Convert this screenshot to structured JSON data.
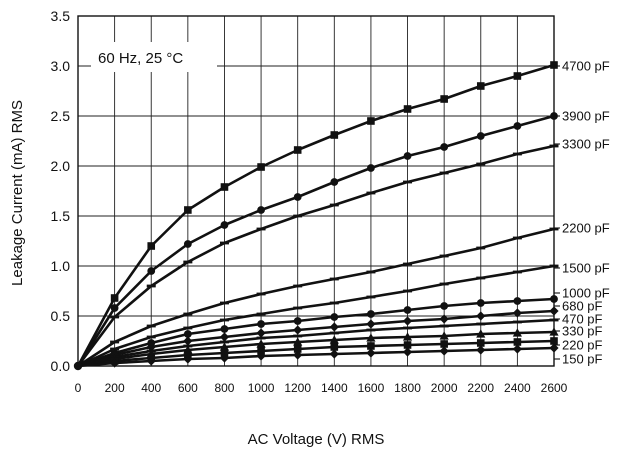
{
  "chart_data": {
    "type": "line",
    "title": "",
    "xlabel": "AC Voltage (V) RMS",
    "ylabel": "Leakage Current (mA) RMS",
    "xlim": [
      0,
      2600
    ],
    "ylim": [
      0,
      3.5
    ],
    "x_ticks": [
      "0",
      "200",
      "400",
      "600",
      "800",
      "1000",
      "1200",
      "1400",
      "1600",
      "1800",
      "2000",
      "2200",
      "2400",
      "2600"
    ],
    "y_ticks": [
      "0.0",
      "0.5",
      "1.0",
      "1.5",
      "2.0",
      "2.5",
      "3.0",
      "3.5"
    ],
    "grid": true,
    "annotation": "60 Hz, 25 °C",
    "x": [
      0,
      200,
      400,
      600,
      800,
      1000,
      1200,
      1400,
      1600,
      1800,
      2000,
      2200,
      2400,
      2600
    ],
    "series": [
      {
        "name": "4700 pF",
        "marker": "square",
        "values": [
          0,
          0.68,
          1.2,
          1.56,
          1.79,
          1.99,
          2.16,
          2.31,
          2.45,
          2.57,
          2.67,
          2.8,
          2.9,
          3.01
        ]
      },
      {
        "name": "3900 pF",
        "marker": "circle",
        "values": [
          0,
          0.58,
          0.95,
          1.22,
          1.41,
          1.56,
          1.69,
          1.84,
          1.98,
          2.1,
          2.19,
          2.3,
          2.4,
          2.5
        ]
      },
      {
        "name": "3300 pF",
        "marker": "dash",
        "values": [
          0,
          0.49,
          0.8,
          1.04,
          1.23,
          1.37,
          1.5,
          1.61,
          1.73,
          1.84,
          1.93,
          2.02,
          2.12,
          2.2
        ]
      },
      {
        "name": "2200 pF",
        "marker": "dash",
        "values": [
          0,
          0.24,
          0.4,
          0.52,
          0.63,
          0.72,
          0.8,
          0.87,
          0.94,
          1.02,
          1.1,
          1.18,
          1.28,
          1.37
        ]
      },
      {
        "name": "1500 pF",
        "marker": "dash",
        "values": [
          0,
          0.17,
          0.29,
          0.38,
          0.46,
          0.52,
          0.58,
          0.63,
          0.69,
          0.75,
          0.82,
          0.88,
          0.94,
          1.0
        ]
      },
      {
        "name": "1000 pF",
        "marker": "circle",
        "values": [
          0,
          0.13,
          0.23,
          0.32,
          0.37,
          0.42,
          0.45,
          0.49,
          0.52,
          0.56,
          0.6,
          0.63,
          0.65,
          0.67
        ]
      },
      {
        "name": "680 pF",
        "marker": "diamond",
        "values": [
          0,
          0.11,
          0.19,
          0.25,
          0.29,
          0.33,
          0.36,
          0.39,
          0.42,
          0.45,
          0.47,
          0.5,
          0.53,
          0.55
        ]
      },
      {
        "name": "470 pF",
        "marker": "dash",
        "values": [
          0,
          0.09,
          0.15,
          0.2,
          0.24,
          0.28,
          0.3,
          0.33,
          0.36,
          0.38,
          0.4,
          0.42,
          0.44,
          0.46
        ]
      },
      {
        "name": "330 pF",
        "marker": "triangle",
        "values": [
          0,
          0.07,
          0.12,
          0.16,
          0.19,
          0.22,
          0.24,
          0.26,
          0.28,
          0.29,
          0.3,
          0.32,
          0.33,
          0.34
        ]
      },
      {
        "name": "220 pF",
        "marker": "square",
        "values": [
          0,
          0.05,
          0.08,
          0.11,
          0.13,
          0.15,
          0.17,
          0.19,
          0.2,
          0.21,
          0.22,
          0.23,
          0.24,
          0.25
        ]
      },
      {
        "name": "150 pF",
        "marker": "diamond",
        "values": [
          0,
          0.03,
          0.05,
          0.07,
          0.08,
          0.1,
          0.11,
          0.12,
          0.13,
          0.14,
          0.15,
          0.16,
          0.17,
          0.18
        ]
      }
    ],
    "series_labels": [
      {
        "text": "4700 pF",
        "y": 3.0
      },
      {
        "text": "3900 pF",
        "y": 2.5
      },
      {
        "text": "3300 pF",
        "y": 2.22
      },
      {
        "text": "2200 pF",
        "y": 1.38
      },
      {
        "text": "1500 pF",
        "y": 0.98
      },
      {
        "text": "1000 pF",
        "y": 0.73
      },
      {
        "text": "680 pF",
        "y": 0.6
      },
      {
        "text": "470 pF",
        "y": 0.47
      },
      {
        "text": "330 pF",
        "y": 0.35
      },
      {
        "text": "220 pF",
        "y": 0.21
      },
      {
        "text": "150 pF",
        "y": 0.07
      }
    ]
  }
}
